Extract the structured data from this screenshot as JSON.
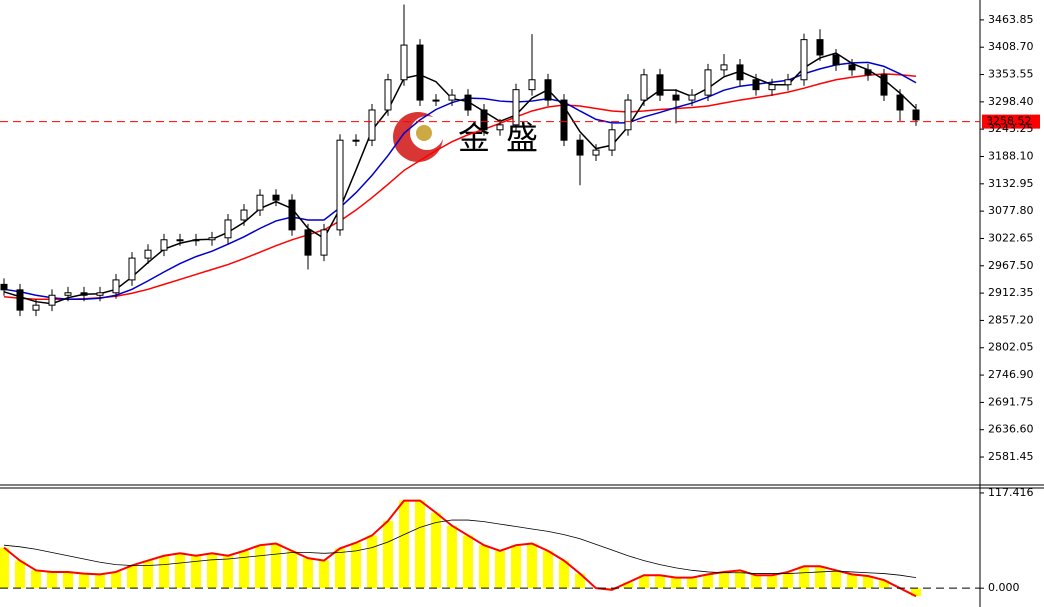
{
  "chart_data": [
    {
      "type": "candlestick",
      "ylim": [
        2525,
        3504
      ],
      "yticks": [
        3463.85,
        {
          "value": 3408.7,
          "label": "3408.70"
        },
        3353.55,
        {
          "value": 3298.4,
          "label": "3298.40"
        },
        3243.25,
        {
          "value": 3188.1,
          "label": "3188.10"
        },
        3132.95,
        {
          "value": 3077.8,
          "label": "3077.80"
        },
        3022.65,
        {
          "value": 2967.5,
          "label": "2967.50"
        },
        2912.35,
        {
          "value": 2857.2,
          "label": "2857.20"
        },
        2802.05,
        {
          "value": 2746.9,
          "label": "2746.90"
        },
        2691.75,
        {
          "value": 2636.6,
          "label": "2636.60"
        },
        2581.45
      ],
      "current_price": 3258.52,
      "current_color": "#ff0000",
      "watermark": [
        "金",
        "盛"
      ],
      "up_color": "#ffffff",
      "down_color": "#000000",
      "open": [
        2930,
        2919,
        2878,
        2888,
        2908,
        2913,
        2908,
        2913,
        2939,
        2983,
        2999,
        3020,
        3020,
        3020,
        3024,
        3060,
        3080,
        3110,
        3100,
        3040,
        2989,
        3040,
        3221,
        3221,
        3282,
        3343,
        3413,
        3302,
        3302,
        3312,
        3282,
        3242,
        3252,
        3323,
        3343,
        3302,
        3221,
        3191,
        3201,
        3242,
        3302,
        3353,
        3312,
        3302,
        3312,
        3363,
        3373,
        3343,
        3323,
        3333,
        3343,
        3424,
        3393,
        3373,
        3363,
        3353,
        3312,
        3282
      ],
      "high": [
        2942,
        2931,
        2900,
        2920,
        2925,
        2925,
        2925,
        2951,
        2995,
        3011,
        3032,
        3032,
        3032,
        3036,
        3072,
        3092,
        3122,
        3122,
        3112,
        3052,
        3052,
        3233,
        3233,
        3294,
        3355,
        3495,
        3425,
        3314,
        3324,
        3324,
        3294,
        3264,
        3335,
        3435,
        3355,
        3314,
        3233,
        3213,
        3254,
        3314,
        3365,
        3365,
        3324,
        3324,
        3375,
        3395,
        3385,
        3355,
        3345,
        3355,
        3436,
        3445,
        3405,
        3385,
        3375,
        3365,
        3324,
        3294
      ],
      "low": [
        2907,
        2866,
        2866,
        2876,
        2896,
        2896,
        2896,
        2901,
        2927,
        2971,
        2987,
        3008,
        3008,
        3008,
        3012,
        3048,
        3068,
        3088,
        3028,
        2960,
        2977,
        3028,
        3209,
        3209,
        3270,
        3331,
        3290,
        3290,
        3290,
        3270,
        3230,
        3230,
        3240,
        3311,
        3290,
        3209,
        3130,
        3179,
        3189,
        3230,
        3290,
        3300,
        3255,
        3290,
        3300,
        3351,
        3331,
        3311,
        3311,
        3321,
        3331,
        3381,
        3361,
        3351,
        3341,
        3300,
        3260,
        3250
      ],
      "close": [
        2919,
        2878,
        2888,
        2908,
        2913,
        2908,
        2913,
        2939,
        2983,
        2999,
        3020,
        3020,
        3020,
        3024,
        3060,
        3080,
        3110,
        3100,
        3040,
        2989,
        3040,
        3221,
        3221,
        3282,
        3343,
        3413,
        3302,
        3302,
        3312,
        3282,
        3242,
        3252,
        3323,
        3343,
        3302,
        3221,
        3191,
        3201,
        3242,
        3302,
        3353,
        3312,
        3302,
        3312,
        3363,
        3373,
        3343,
        3323,
        3333,
        3343,
        3424,
        3393,
        3373,
        3363,
        3353,
        3312,
        3282,
        3262
      ],
      "series": [
        {
          "color": "#ff0000",
          "values": [
            2905,
            2902,
            2900,
            2900,
            2900,
            2901,
            2903,
            2906,
            2912,
            2920,
            2930,
            2940,
            2950,
            2960,
            2970,
            2982,
            2995,
            3008,
            3020,
            3030,
            3040,
            3058,
            3080,
            3105,
            3132,
            3160,
            3180,
            3200,
            3218,
            3232,
            3243,
            3255,
            3268,
            3280,
            3288,
            3292,
            3290,
            3285,
            3280,
            3278,
            3280,
            3283,
            3285,
            3287,
            3290,
            3296,
            3302,
            3307,
            3312,
            3318,
            3326,
            3335,
            3343,
            3348,
            3352,
            3355,
            3353,
            3350
          ]
        },
        {
          "color": "#0000cc",
          "values": [
            2920,
            2915,
            2908,
            2903,
            2900,
            2900,
            2902,
            2908,
            2920,
            2937,
            2955,
            2972,
            2986,
            2997,
            3011,
            3026,
            3043,
            3058,
            3066,
            3060,
            3060,
            3085,
            3115,
            3150,
            3190,
            3235,
            3262,
            3283,
            3297,
            3306,
            3305,
            3300,
            3298,
            3300,
            3305,
            3298,
            3280,
            3263,
            3256,
            3256,
            3268,
            3277,
            3287,
            3296,
            3308,
            3322,
            3330,
            3334,
            3338,
            3342,
            3355,
            3365,
            3373,
            3377,
            3378,
            3370,
            3355,
            3337
          ]
        },
        {
          "color": "#000000",
          "values": [
            2915,
            2905,
            2895,
            2891,
            2903,
            2910,
            2911,
            2920,
            2945,
            2974,
            3001,
            3013,
            3020,
            3021,
            3035,
            3055,
            3083,
            3097,
            3083,
            3043,
            3023,
            3083,
            3161,
            3241,
            3282,
            3346,
            3353,
            3339,
            3305,
            3299,
            3279,
            3259,
            3272,
            3306,
            3323,
            3289,
            3238,
            3204,
            3211,
            3248,
            3299,
            3322,
            3322,
            3309,
            3326,
            3349,
            3360,
            3346,
            3333,
            3333,
            3367,
            3387,
            3397,
            3376,
            3363,
            3343,
            3316,
            3285
          ]
        }
      ]
    },
    {
      "type": "bar",
      "ylim": [
        -23.2,
        123.5
      ],
      "yticks": [
        117.416,
        {
          "value": 0,
          "label": "0.000"
        }
      ],
      "color": "#ffff00",
      "outline_color": "#ff0000",
      "values": [
        50,
        34,
        22,
        20,
        20,
        18,
        17,
        20,
        28,
        34,
        40,
        43,
        40,
        43,
        40,
        46,
        53,
        55,
        46,
        37,
        34,
        49,
        56,
        65,
        83,
        108,
        108,
        93,
        77,
        65,
        53,
        46,
        53,
        55,
        46,
        34,
        18,
        0,
        -2,
        7,
        16,
        16,
        13,
        13,
        17,
        20,
        22,
        16,
        16,
        20,
        27,
        27,
        22,
        17,
        15,
        10,
        0,
        -10
      ],
      "series": [
        {
          "color": "#000000",
          "values": [
            53,
            51,
            48,
            44,
            40,
            36,
            32,
            29,
            28,
            28,
            29,
            31,
            33,
            35,
            36,
            38,
            40,
            42,
            44,
            44,
            43,
            44,
            46,
            50,
            57,
            66,
            75,
            81,
            84,
            84,
            82,
            79,
            76,
            73,
            70,
            66,
            61,
            54,
            47,
            40,
            34,
            29,
            25,
            22,
            20,
            19,
            19,
            18,
            18,
            18,
            19,
            20,
            21,
            20,
            19,
            18,
            16,
            13
          ]
        }
      ]
    }
  ]
}
